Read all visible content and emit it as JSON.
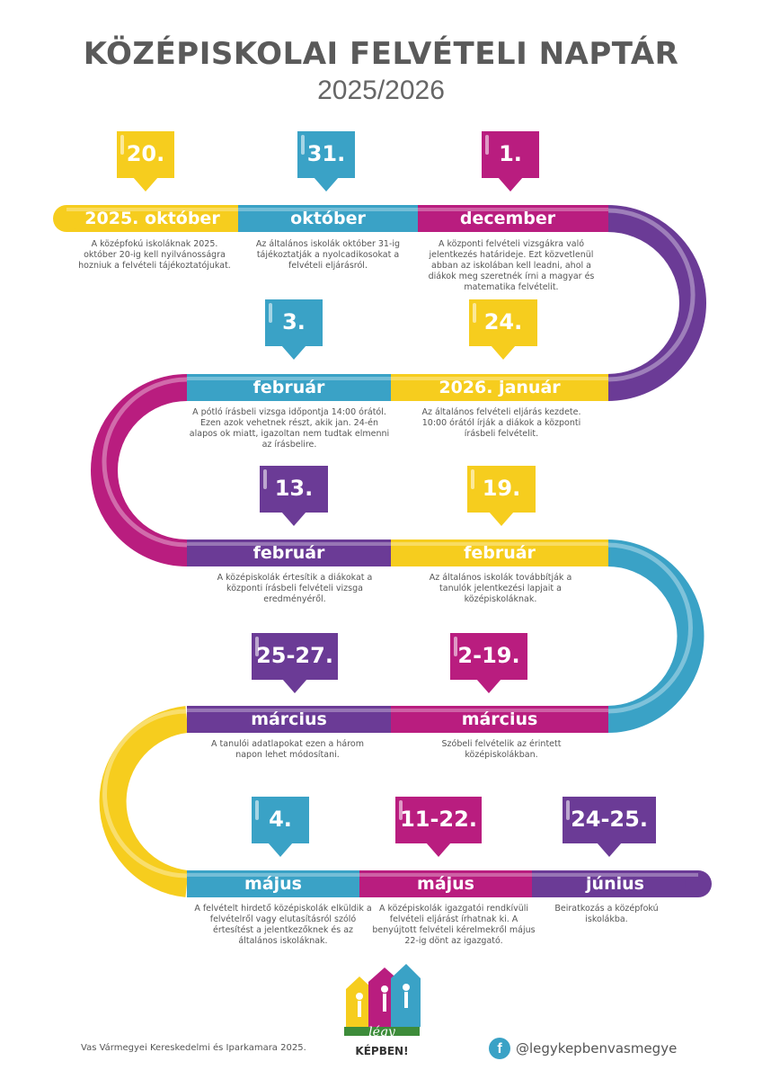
{
  "header": {
    "title": "KÖZÉPISKOLAI FELVÉTELI NAPTÁR",
    "subtitle": "2025/2026"
  },
  "colors": {
    "yellow": "#f6cd1e",
    "blue": "#3aa2c6",
    "magenta": "#b91d7f",
    "purple": "#6b3b96",
    "text": "#555555"
  },
  "events": [
    {
      "date": "20.",
      "month": "2025. október",
      "color": "yellow",
      "desc": "A középfokú iskoláknak 2025. október 20-ig kell nyilvánosságra hozniuk a felvételi tájékoztatójukat."
    },
    {
      "date": "31.",
      "month": "október",
      "color": "blue",
      "desc": "Az általános iskolák október 31-ig tájékoztatják a nyolcadikosokat a felvételi eljárásról."
    },
    {
      "date": "1.",
      "month": "december",
      "color": "magenta",
      "desc": "A központi felvételi vizsgákra való jelentkezés határideje. Ezt közvetlenül abban az iskolában kell leadni, ahol a diákok meg szeretnék írni a magyar és matematika felvételit."
    },
    {
      "date": "24.",
      "month": "2026. január",
      "color": "yellow",
      "desc": "Az általános felvételi eljárás kezdete. 10:00 órától írják a diákok a központi írásbeli felvételit."
    },
    {
      "date": "3.",
      "month": "február",
      "color": "blue",
      "desc": "A pótló írásbeli vizsga időpontja 14:00 órától. Ezen azok vehetnek részt, akik jan. 24-én alapos ok miatt, igazoltan nem tudtak elmenni az írásbelire."
    },
    {
      "date": "13.",
      "month": "február",
      "color": "purple",
      "desc": "A középiskolák értesítik a diákokat a központi írásbeli felvételi vizsga eredményéről."
    },
    {
      "date": "19.",
      "month": "február",
      "color": "yellow",
      "desc": "Az általános iskolák továbbítják a tanulók jelentkezési lapjait a középiskoláknak."
    },
    {
      "date": "2-19.",
      "month": "március",
      "color": "magenta",
      "desc": "Szóbeli felvételik az érintett középiskolákban."
    },
    {
      "date": "25-27.",
      "month": "március",
      "color": "purple",
      "desc": "A tanulói adatlapokat ezen a három napon lehet módosítani."
    },
    {
      "date": "4.",
      "month": "május",
      "color": "blue",
      "desc": "A felvételt hirdető középiskolák elküldik a felvételről vagy elutasításról szóló értesítést a jelentkezőknek és az általános iskoláknak."
    },
    {
      "date": "11-22.",
      "month": "május",
      "color": "magenta",
      "desc": "A középiskolák igazgatói rendkívüli felvételi eljárást írhatnak ki. A benyújtott felvételi kérelmekről május 22-ig dönt az igazgató."
    },
    {
      "date": "24-25.",
      "month": "június",
      "color": "purple",
      "desc": "Beiratkozás a középfokú iskolákba."
    }
  ],
  "footer": {
    "organization": "Vas Vármegyei Kereskedelmi és Iparkamara 2025.",
    "logo_line1": "légy",
    "logo_line2": "KÉPBEN!",
    "social_handle": "@legykepbenvasmegye",
    "social_icon": "facebook-icon"
  }
}
